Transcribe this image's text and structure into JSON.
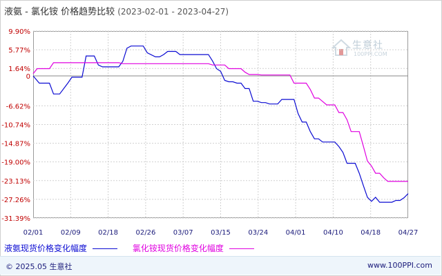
{
  "header": {
    "title": "液氨 - 氯化铵 价格趋势比较",
    "subtitle": "(2023-02-01 - 2023-04-27)"
  },
  "logo": {
    "name": "生意社",
    "url": "100PPI.COM"
  },
  "footer": {
    "copyright": "© 2025.05 生意社",
    "site": "www.100PPI.com"
  },
  "colors": {
    "series_a": "#0a0ad2",
    "series_b": "#e000e0",
    "axis_labels": "#c00000",
    "grid": "#d0d0d0"
  },
  "chart_data": {
    "type": "line",
    "title": "液氨 - 氯化铵 价格趋势比较",
    "xlabel": "",
    "ylabel": "",
    "x_ticks": [
      "02/01",
      "02/09",
      "02/18",
      "02/26",
      "03/07",
      "03/15",
      "03/24",
      "04/01",
      "04/10",
      "04/18",
      "04/27"
    ],
    "y_ticks": [
      "9.90%",
      "5.77%",
      "1.64%",
      "0",
      "-6.62%",
      "-10.74%",
      "-14.87%",
      "-19.00%",
      "-23.13%",
      "-27.26%",
      "-31.39%"
    ],
    "y_values": [
      9.9,
      5.77,
      1.64,
      0,
      -6.62,
      -10.74,
      -14.87,
      -19.0,
      -23.13,
      -27.26,
      -31.39
    ],
    "ylim": [
      -31.39,
      9.9
    ],
    "grid": true,
    "legend_position": "bottom-left",
    "series": [
      {
        "name": "液氨现货价格变化幅度",
        "color": "#0a0ad2",
        "points": [
          [
            0,
            0.0
          ],
          [
            1.5,
            -1.6
          ],
          [
            4,
            -1.6
          ],
          [
            5,
            -4.0
          ],
          [
            6.5,
            -4.0
          ],
          [
            8.5,
            -1.6
          ],
          [
            9.5,
            -0.3
          ],
          [
            12,
            -0.3
          ],
          [
            13,
            4.4
          ],
          [
            15,
            4.4
          ],
          [
            16,
            2.4
          ],
          [
            17,
            2.0
          ],
          [
            21,
            2.0
          ],
          [
            22,
            3.2
          ],
          [
            23,
            6.1
          ],
          [
            24,
            6.6
          ],
          [
            27,
            6.6
          ],
          [
            28,
            5.1
          ],
          [
            30,
            4.2
          ],
          [
            31,
            4.2
          ],
          [
            32,
            4.7
          ],
          [
            33,
            5.4
          ],
          [
            35,
            5.4
          ],
          [
            36,
            4.7
          ],
          [
            43,
            4.7
          ],
          [
            44,
            3.3
          ],
          [
            45,
            1.6
          ],
          [
            46,
            1.0
          ],
          [
            47,
            -1.0
          ],
          [
            48,
            -1.3
          ],
          [
            49,
            -1.3
          ],
          [
            50,
            -1.6
          ],
          [
            51,
            -1.6
          ],
          [
            52,
            -2.8
          ],
          [
            53,
            -2.8
          ],
          [
            54,
            -5.6
          ],
          [
            55,
            -5.6
          ],
          [
            56,
            -5.9
          ],
          [
            57,
            -5.9
          ],
          [
            58,
            -6.2
          ],
          [
            60,
            -6.2
          ],
          [
            61,
            -5.2
          ],
          [
            64,
            -5.2
          ],
          [
            65,
            -8.3
          ],
          [
            66,
            -10.2
          ],
          [
            67,
            -10.2
          ],
          [
            68,
            -12.3
          ],
          [
            69,
            -13.9
          ],
          [
            70,
            -13.9
          ],
          [
            71,
            -14.6
          ],
          [
            74,
            -14.6
          ],
          [
            75,
            -15.6
          ],
          [
            76,
            -16.9
          ],
          [
            77,
            -19.3
          ],
          [
            79,
            -19.3
          ],
          [
            80,
            -21.5
          ],
          [
            81,
            -24.2
          ],
          [
            82,
            -26.8
          ],
          [
            83,
            -27.7
          ],
          [
            84,
            -26.8
          ],
          [
            85,
            -27.9
          ],
          [
            88,
            -27.9
          ],
          [
            89,
            -27.5
          ],
          [
            90,
            -27.5
          ],
          [
            91,
            -26.9
          ],
          [
            92,
            -26.0
          ]
        ]
      },
      {
        "name": "氯化铵现货价格变化幅度",
        "color": "#e000e0",
        "points": [
          [
            0,
            0.5
          ],
          [
            1,
            1.6
          ],
          [
            4,
            1.6
          ],
          [
            5,
            2.9
          ],
          [
            21,
            2.9
          ],
          [
            22,
            2.7
          ],
          [
            43,
            2.7
          ],
          [
            44,
            2.4
          ],
          [
            47,
            2.4
          ],
          [
            48,
            1.6
          ],
          [
            50,
            1.6
          ],
          [
            51,
            1.6
          ],
          [
            52,
            0.8
          ],
          [
            53,
            0.3
          ],
          [
            55,
            0.3
          ],
          [
            56,
            0.2
          ],
          [
            63,
            0.2
          ],
          [
            64,
            -1.6
          ],
          [
            67,
            -1.6
          ],
          [
            68,
            -3.0
          ],
          [
            69,
            -4.9
          ],
          [
            70,
            -4.9
          ],
          [
            72,
            -6.4
          ],
          [
            74,
            -6.4
          ],
          [
            75,
            -8.1
          ],
          [
            76,
            -8.1
          ],
          [
            77,
            -9.7
          ],
          [
            78,
            -12.3
          ],
          [
            80,
            -12.3
          ],
          [
            81,
            -15.5
          ],
          [
            82,
            -18.8
          ],
          [
            83,
            -19.9
          ],
          [
            84,
            -21.5
          ],
          [
            85,
            -21.5
          ],
          [
            86,
            -22.5
          ],
          [
            87,
            -23.3
          ],
          [
            92,
            -23.3
          ]
        ]
      }
    ]
  }
}
